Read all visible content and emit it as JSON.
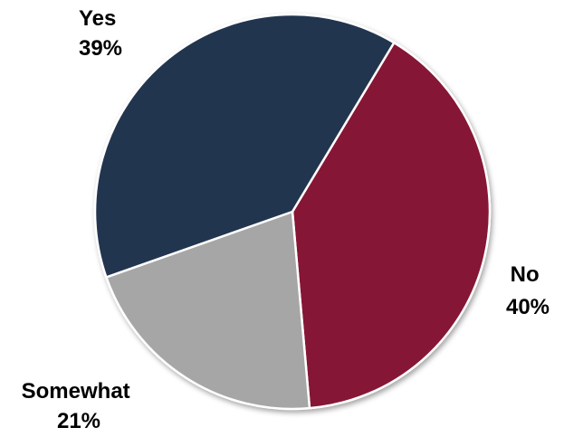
{
  "chart_data": {
    "type": "pie",
    "title": "",
    "slices": [
      {
        "label": "Yes",
        "value": 39,
        "value_label": "39%",
        "color": "#243550"
      },
      {
        "label": "No",
        "value": 40,
        "value_label": "40%",
        "color": "#861834"
      },
      {
        "label": "Somewhat",
        "value": 21,
        "value_label": "21%",
        "color": "#a6a6a6"
      }
    ],
    "legend": "none",
    "labels": "outside"
  }
}
